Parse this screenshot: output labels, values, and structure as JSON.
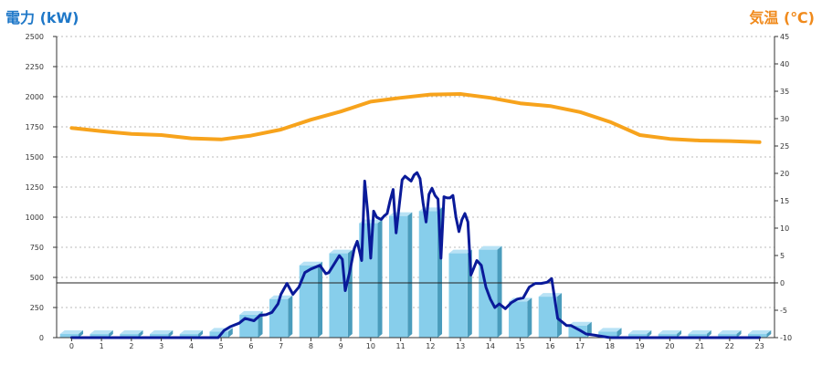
{
  "chart_data": {
    "type": "bar",
    "left_axis_label": "電力 (kW)",
    "right_axis_label": "気温 (℃)",
    "categories": [
      "0",
      "1",
      "2",
      "3",
      "4",
      "5",
      "6",
      "7",
      "8",
      "9",
      "10",
      "11",
      "12",
      "13",
      "14",
      "15",
      "16",
      "17",
      "18",
      "19",
      "20",
      "21",
      "22",
      "23"
    ],
    "yleft_lim": [
      0,
      2500
    ],
    "yleft_ticks": [
      "0",
      "250",
      "500",
      "750",
      "1000",
      "1250",
      "1500",
      "1750",
      "2000",
      "2250",
      "2500"
    ],
    "yright_lim": [
      -10,
      45
    ],
    "yright_ticks": [
      "-10",
      "-5",
      "0",
      "5",
      "10",
      "15",
      "20",
      "25",
      "30",
      "35",
      "40",
      "45"
    ],
    "grid": true,
    "series": [
      {
        "kind": "bar",
        "axis": "left",
        "values": [
          30,
          30,
          30,
          30,
          30,
          50,
          190,
          320,
          600,
          700,
          950,
          1010,
          1050,
          700,
          730,
          300,
          340,
          100,
          50,
          30,
          30,
          30,
          30,
          30
        ],
        "color": "#87ceeb"
      },
      {
        "kind": "line",
        "axis": "left",
        "x": [
          0,
          4,
          4.9,
          5.1,
          5.3,
          5.6,
          5.8,
          6.1,
          6.3,
          6.5,
          6.7,
          6.9,
          7.0,
          7.2,
          7.4,
          7.6,
          7.8,
          8.0,
          8.3,
          8.5,
          8.6,
          8.8,
          8.95,
          9.05,
          9.15,
          9.3,
          9.45,
          9.55,
          9.7,
          9.8,
          9.9,
          10.0,
          10.1,
          10.2,
          10.35,
          10.45,
          10.55,
          10.65,
          10.75,
          10.85,
          10.95,
          11.05,
          11.15,
          11.25,
          11.35,
          11.45,
          11.55,
          11.65,
          11.75,
          11.85,
          11.95,
          12.05,
          12.15,
          12.25,
          12.35,
          12.45,
          12.55,
          12.65,
          12.75,
          12.85,
          12.95,
          13.05,
          13.15,
          13.25,
          13.35,
          13.45,
          13.55,
          13.7,
          13.85,
          14.0,
          14.15,
          14.3,
          14.5,
          14.7,
          14.9,
          15.1,
          15.3,
          15.5,
          15.7,
          15.9,
          16.05,
          16.25,
          16.4,
          16.55,
          16.7,
          16.85,
          17.0,
          17.2,
          17.5,
          18.0,
          23.0
        ],
        "values": [
          0,
          0,
          0,
          60,
          90,
          120,
          160,
          140,
          185,
          190,
          210,
          280,
          360,
          450,
          360,
          420,
          540,
          570,
          600,
          530,
          540,
          620,
          680,
          650,
          390,
          550,
          740,
          800,
          640,
          1300,
          1040,
          660,
          1050,
          1000,
          980,
          1010,
          1030,
          1140,
          1230,
          870,
          1090,
          1310,
          1340,
          1320,
          1300,
          1350,
          1370,
          1320,
          1120,
          960,
          1190,
          1240,
          1180,
          1150,
          660,
          1170,
          1160,
          1160,
          1180,
          1000,
          880,
          980,
          1030,
          960,
          520,
          580,
          640,
          600,
          420,
          320,
          250,
          280,
          240,
          290,
          320,
          330,
          420,
          450,
          450,
          460,
          490,
          160,
          130,
          100,
          100,
          80,
          60,
          30,
          20,
          0,
          0
        ],
        "color": "#0a1a99"
      },
      {
        "kind": "line",
        "axis": "right",
        "x": [
          0,
          1,
          2,
          3,
          4,
          5,
          6,
          7,
          8,
          9,
          10,
          11,
          12,
          13,
          14,
          15,
          16,
          17,
          18,
          19,
          20,
          21,
          22,
          23
        ],
        "values": [
          28.3,
          27.7,
          27.2,
          27.0,
          26.4,
          26.2,
          26.9,
          28.0,
          29.8,
          31.3,
          33.1,
          33.8,
          34.4,
          34.5,
          33.8,
          32.8,
          32.3,
          31.2,
          29.4,
          27.0,
          26.3,
          26.0,
          25.9,
          25.7
        ],
        "color": "#f7a31c"
      }
    ]
  }
}
